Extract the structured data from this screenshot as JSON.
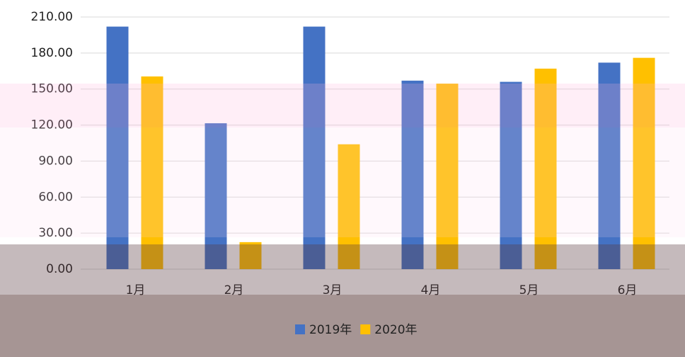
{
  "chart_data": {
    "type": "bar",
    "categories": [
      "1月",
      "2月",
      "3月",
      "4月",
      "5月",
      "6月"
    ],
    "series": [
      {
        "name": "2019年",
        "color": "#4472c4",
        "values": [
          202,
          121.5,
          202,
          157,
          156,
          172
        ]
      },
      {
        "name": "2020年",
        "color": "#ffc000",
        "values": [
          160.5,
          22.5,
          104,
          154.5,
          167,
          176
        ]
      }
    ],
    "ylim": [
      0,
      210
    ],
    "yticks": [
      {
        "value": 0,
        "label": "0.00"
      },
      {
        "value": 30,
        "label": "30.00"
      },
      {
        "value": 60,
        "label": "60.00"
      },
      {
        "value": 90,
        "label": "90.00"
      },
      {
        "value": 120,
        "label": "120.00"
      },
      {
        "value": 150,
        "label": "150.00"
      },
      {
        "value": 180,
        "label": "180.00"
      },
      {
        "value": 210,
        "label": "210.00"
      }
    ],
    "grid": true,
    "legend": "bottom"
  }
}
